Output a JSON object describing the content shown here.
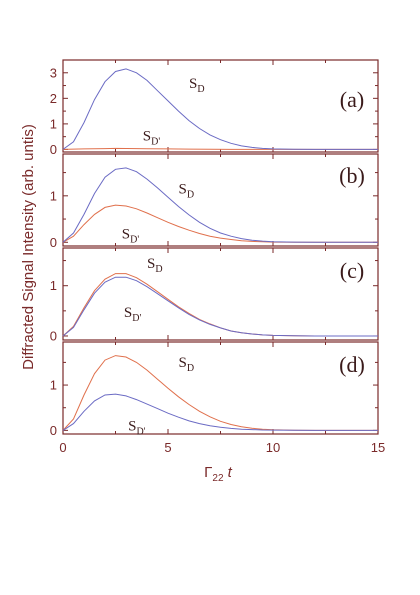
{
  "chart_data": {
    "type": "line",
    "ylabel": "Diffracted Signal Intensity (arb. untis)",
    "xlabel": {
      "main": "Γ",
      "sub": "22",
      "tail": " t"
    },
    "xlim": [
      0,
      15
    ],
    "xticks": [
      0,
      5,
      10,
      15
    ],
    "colors": {
      "S_D": "#6b6bc4",
      "S_Dprime": "#e0704c",
      "frame": "#7a2a2a"
    },
    "panels": [
      {
        "label": "(a)",
        "ylim": [
          -0.1,
          3.5
        ],
        "yticks": [
          0,
          1,
          2,
          3
        ],
        "series": [
          {
            "name": "S_D",
            "label_main": "S",
            "label_sub": "D",
            "peak": 3.15,
            "t_peak": 2.8,
            "points": [
              [
                0,
                0
              ],
              [
                0.5,
                0.3
              ],
              [
                1,
                1.05
              ],
              [
                1.5,
                1.95
              ],
              [
                2,
                2.65
              ],
              [
                2.5,
                3.05
              ],
              [
                3,
                3.15
              ],
              [
                3.5,
                3.0
              ],
              [
                4,
                2.7
              ],
              [
                4.5,
                2.3
              ],
              [
                5,
                1.9
              ],
              [
                5.5,
                1.5
              ],
              [
                6,
                1.13
              ],
              [
                6.5,
                0.82
              ],
              [
                7,
                0.57
              ],
              [
                7.5,
                0.38
              ],
              [
                8,
                0.24
              ],
              [
                8.5,
                0.14
              ],
              [
                9,
                0.08
              ],
              [
                9.5,
                0.04
              ],
              [
                10,
                0.02
              ],
              [
                11,
                0.005
              ],
              [
                12,
                0
              ],
              [
                15,
                0
              ]
            ]
          },
          {
            "name": "S_D'",
            "label_main": "S",
            "label_sub": "D'",
            "peak": 0.04,
            "t_peak": 2.5,
            "points": [
              [
                0,
                0
              ],
              [
                1,
                0.02
              ],
              [
                2,
                0.035
              ],
              [
                2.5,
                0.04
              ],
              [
                3,
                0.038
              ],
              [
                4,
                0.03
              ],
              [
                5,
                0.02
              ],
              [
                6,
                0.012
              ],
              [
                7,
                0.006
              ],
              [
                8,
                0.003
              ],
              [
                9,
                0.001
              ],
              [
                10,
                0
              ],
              [
                15,
                0
              ]
            ]
          }
        ]
      },
      {
        "label": "(b)",
        "ylim": [
          -0.08,
          1.9
        ],
        "yticks": [
          0,
          1
        ],
        "series": [
          {
            "name": "S_D",
            "label_main": "S",
            "label_sub": "D",
            "peak": 1.6,
            "t_peak": 2.7,
            "points": [
              [
                0,
                0
              ],
              [
                0.5,
                0.2
              ],
              [
                1,
                0.6
              ],
              [
                1.5,
                1.05
              ],
              [
                2,
                1.4
              ],
              [
                2.5,
                1.57
              ],
              [
                3,
                1.6
              ],
              [
                3.5,
                1.52
              ],
              [
                4,
                1.36
              ],
              [
                4.5,
                1.17
              ],
              [
                5,
                0.97
              ],
              [
                5.5,
                0.77
              ],
              [
                6,
                0.59
              ],
              [
                6.5,
                0.43
              ],
              [
                7,
                0.3
              ],
              [
                7.5,
                0.2
              ],
              [
                8,
                0.13
              ],
              [
                8.5,
                0.08
              ],
              [
                9,
                0.045
              ],
              [
                9.5,
                0.025
              ],
              [
                10,
                0.012
              ],
              [
                11,
                0.003
              ],
              [
                12,
                0
              ],
              [
                15,
                0
              ]
            ]
          },
          {
            "name": "S_D'",
            "label_main": "S",
            "label_sub": "D'",
            "peak": 0.8,
            "t_peak": 2.4,
            "points": [
              [
                0,
                0
              ],
              [
                0.5,
                0.13
              ],
              [
                1,
                0.38
              ],
              [
                1.5,
                0.6
              ],
              [
                2,
                0.75
              ],
              [
                2.5,
                0.8
              ],
              [
                3,
                0.78
              ],
              [
                3.5,
                0.72
              ],
              [
                4,
                0.63
              ],
              [
                4.5,
                0.53
              ],
              [
                5,
                0.43
              ],
              [
                5.5,
                0.34
              ],
              [
                6,
                0.26
              ],
              [
                6.5,
                0.19
              ],
              [
                7,
                0.13
              ],
              [
                7.5,
                0.09
              ],
              [
                8,
                0.06
              ],
              [
                8.5,
                0.035
              ],
              [
                9,
                0.02
              ],
              [
                9.5,
                0.01
              ],
              [
                10,
                0.005
              ],
              [
                11,
                0.001
              ],
              [
                12,
                0
              ],
              [
                15,
                0
              ]
            ]
          }
        ]
      },
      {
        "label": "(c)",
        "ylim": [
          -0.08,
          1.75
        ],
        "yticks": [
          0,
          1
        ],
        "series": [
          {
            "name": "S_D",
            "label_main": "S",
            "label_sub": "D",
            "peak": 1.18,
            "t_peak": 2.5,
            "points": [
              [
                0,
                0
              ],
              [
                0.5,
                0.17
              ],
              [
                1,
                0.52
              ],
              [
                1.5,
                0.85
              ],
              [
                2,
                1.07
              ],
              [
                2.5,
                1.17
              ],
              [
                3,
                1.17
              ],
              [
                3.5,
                1.1
              ],
              [
                4,
                0.98
              ],
              [
                4.5,
                0.84
              ],
              [
                5,
                0.7
              ],
              [
                5.5,
                0.56
              ],
              [
                6,
                0.43
              ],
              [
                6.5,
                0.32
              ],
              [
                7,
                0.23
              ],
              [
                7.5,
                0.16
              ],
              [
                8,
                0.1
              ],
              [
                8.5,
                0.065
              ],
              [
                9,
                0.04
              ],
              [
                9.5,
                0.022
              ],
              [
                10,
                0.012
              ],
              [
                11,
                0.003
              ],
              [
                12,
                0
              ],
              [
                15,
                0
              ]
            ]
          },
          {
            "name": "S_D'",
            "label_main": "S",
            "label_sub": "D'",
            "peak": 1.25,
            "t_peak": 2.5,
            "points": [
              [
                0,
                0
              ],
              [
                0.5,
                0.19
              ],
              [
                1,
                0.56
              ],
              [
                1.5,
                0.9
              ],
              [
                2,
                1.13
              ],
              [
                2.5,
                1.24
              ],
              [
                3,
                1.24
              ],
              [
                3.5,
                1.16
              ],
              [
                4,
                1.03
              ],
              [
                4.5,
                0.88
              ],
              [
                5,
                0.73
              ],
              [
                5.5,
                0.58
              ],
              [
                6,
                0.45
              ],
              [
                6.5,
                0.33
              ],
              [
                7,
                0.24
              ],
              [
                7.5,
                0.16
              ],
              [
                8,
                0.1
              ],
              [
                8.5,
                0.065
              ],
              [
                9,
                0.04
              ],
              [
                9.5,
                0.022
              ],
              [
                10,
                0.012
              ],
              [
                11,
                0.003
              ],
              [
                12,
                0
              ],
              [
                15,
                0
              ]
            ]
          }
        ]
      },
      {
        "label": "(d)",
        "ylim": [
          -0.08,
          1.95
        ],
        "yticks": [
          0,
          1
        ],
        "series": [
          {
            "name": "S_D",
            "label_main": "S",
            "label_sub": "D",
            "peak": 0.8,
            "t_peak": 2.3,
            "points": [
              [
                0,
                0
              ],
              [
                0.5,
                0.15
              ],
              [
                1,
                0.42
              ],
              [
                1.5,
                0.65
              ],
              [
                2,
                0.78
              ],
              [
                2.5,
                0.8
              ],
              [
                3,
                0.76
              ],
              [
                3.5,
                0.68
              ],
              [
                4,
                0.58
              ],
              [
                4.5,
                0.48
              ],
              [
                5,
                0.38
              ],
              [
                5.5,
                0.29
              ],
              [
                6,
                0.21
              ],
              [
                6.5,
                0.15
              ],
              [
                7,
                0.1
              ],
              [
                7.5,
                0.068
              ],
              [
                8,
                0.044
              ],
              [
                8.5,
                0.027
              ],
              [
                9,
                0.016
              ],
              [
                9.5,
                0.009
              ],
              [
                10,
                0.005
              ],
              [
                11,
                0.001
              ],
              [
                12,
                0
              ],
              [
                15,
                0
              ]
            ]
          },
          {
            "name": "S_D'",
            "label_main": "S",
            "label_sub": "D'",
            "peak": 1.65,
            "t_peak": 2.5,
            "points": [
              [
                0,
                0
              ],
              [
                0.5,
                0.25
              ],
              [
                1,
                0.78
              ],
              [
                1.5,
                1.25
              ],
              [
                2,
                1.55
              ],
              [
                2.5,
                1.65
              ],
              [
                3,
                1.62
              ],
              [
                3.5,
                1.5
              ],
              [
                4,
                1.33
              ],
              [
                4.5,
                1.13
              ],
              [
                5,
                0.93
              ],
              [
                5.5,
                0.74
              ],
              [
                6,
                0.57
              ],
              [
                6.5,
                0.42
              ],
              [
                7,
                0.3
              ],
              [
                7.5,
                0.2
              ],
              [
                8,
                0.13
              ],
              [
                8.5,
                0.08
              ],
              [
                9,
                0.045
              ],
              [
                9.5,
                0.025
              ],
              [
                10,
                0.013
              ],
              [
                11,
                0.003
              ],
              [
                12,
                0
              ],
              [
                15,
                0
              ]
            ]
          }
        ]
      }
    ]
  }
}
